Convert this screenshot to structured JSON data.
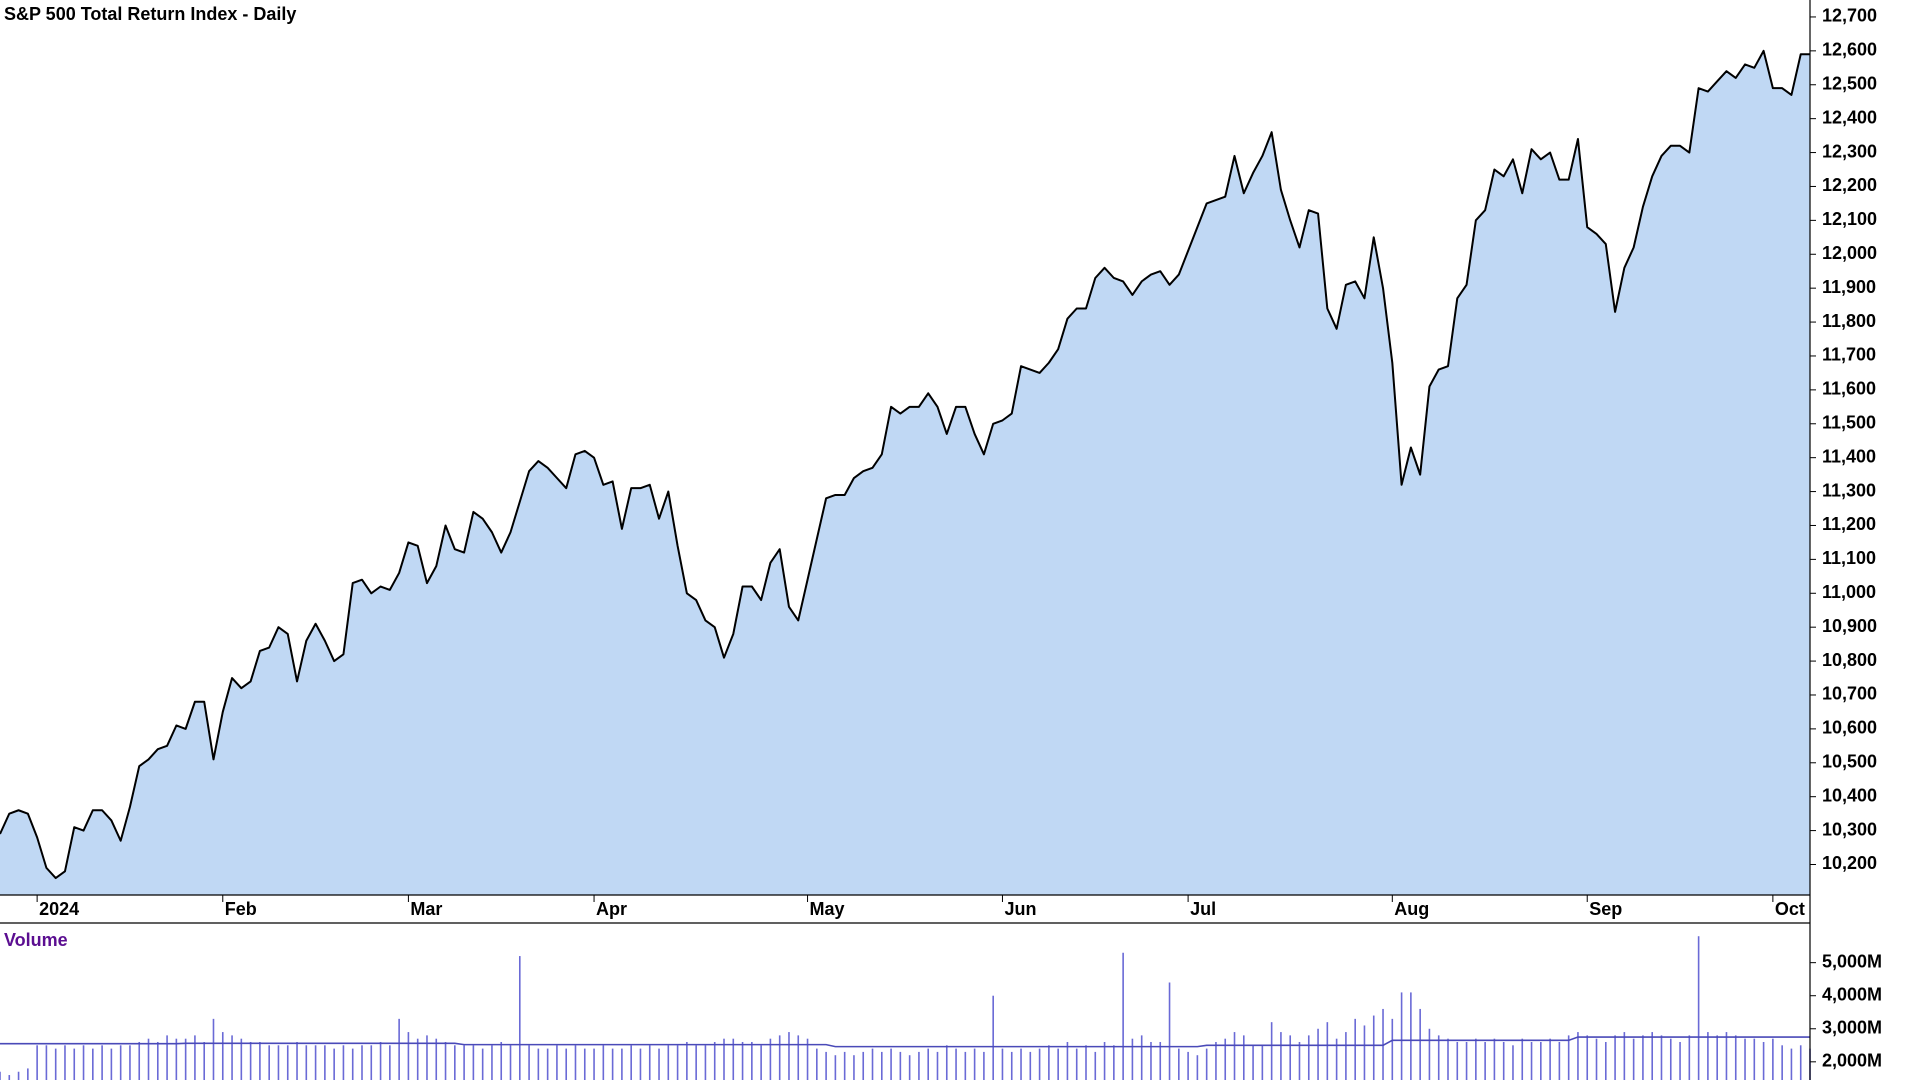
{
  "chart_data": [
    {
      "type": "area",
      "title": "S&P 500 Total Return Index - Daily",
      "color": "#000000",
      "fill": "#c0d8f4",
      "categories": [
        null,
        null,
        null,
        null,
        "2024",
        null,
        null,
        null,
        null,
        null,
        null,
        null,
        null,
        null,
        null,
        null,
        null,
        null,
        null,
        null,
        null,
        null,
        null,
        null,
        "Feb",
        null,
        null,
        null,
        null,
        null,
        null,
        null,
        null,
        null,
        null,
        null,
        null,
        null,
        null,
        null,
        null,
        null,
        null,
        null,
        "Mar",
        null,
        null,
        null,
        null,
        null,
        null,
        null,
        null,
        null,
        null,
        null,
        null,
        null,
        null,
        null,
        null,
        null,
        null,
        null,
        "Apr",
        null,
        null,
        null,
        null,
        null,
        null,
        null,
        null,
        null,
        null,
        null,
        null,
        null,
        null,
        null,
        null,
        null,
        null,
        null,
        null,
        null,
        null,
        "May",
        null,
        null,
        null,
        null,
        null,
        null,
        null,
        null,
        null,
        null,
        null,
        null,
        null,
        null,
        null,
        null,
        null,
        null,
        null,
        null,
        "Jun",
        null,
        null,
        null,
        null,
        null,
        null,
        null,
        null,
        null,
        null,
        null,
        null,
        null,
        null,
        null,
        null,
        null,
        null,
        null,
        "Jul",
        null,
        null,
        null,
        null,
        null,
        null,
        null,
        null,
        null,
        null,
        null,
        null,
        null,
        null,
        null,
        null,
        null,
        null,
        null,
        null,
        null,
        "Aug",
        null,
        null,
        null,
        null,
        null,
        null,
        null,
        null,
        null,
        null,
        null,
        null,
        null,
        null,
        null,
        null,
        null,
        null,
        null,
        null,
        "Sep",
        null,
        null,
        null,
        null,
        null,
        null,
        null,
        null,
        null,
        null,
        null,
        null,
        null,
        null,
        null,
        null,
        null,
        null,
        null,
        "Oct",
        null,
        null,
        null,
        null
      ],
      "values": [
        10290,
        10350,
        10360,
        10350,
        10280,
        10190,
        10160,
        10180,
        10310,
        10300,
        10360,
        10360,
        10330,
        10270,
        10370,
        10490,
        10510,
        10540,
        10550,
        10610,
        10600,
        10680,
        10680,
        10510,
        10650,
        10750,
        10720,
        10740,
        10830,
        10840,
        10900,
        10880,
        10740,
        10860,
        10910,
        10860,
        10800,
        10820,
        11030,
        11040,
        11000,
        11020,
        11010,
        11060,
        11150,
        11140,
        11030,
        11080,
        11200,
        11130,
        11120,
        11240,
        11220,
        11180,
        11120,
        11180,
        11270,
        11360,
        11390,
        11370,
        11340,
        11310,
        11410,
        11420,
        11400,
        11320,
        11330,
        11190,
        11310,
        11310,
        11320,
        11220,
        11300,
        11140,
        11000,
        10980,
        10920,
        10900,
        10810,
        10880,
        11020,
        11020,
        10980,
        11090,
        11130,
        10960,
        10920,
        11040,
        11160,
        11280,
        11290,
        11290,
        11340,
        11360,
        11370,
        11410,
        11550,
        11530,
        11550,
        11550,
        11590,
        11550,
        11470,
        11550,
        11550,
        11470,
        11410,
        11500,
        11510,
        11530,
        11670,
        11660,
        11650,
        11680,
        11720,
        11810,
        11840,
        11840,
        11930,
        11960,
        11930,
        11920,
        11880,
        11920,
        11940,
        11950,
        11910,
        11940,
        12010,
        12080,
        12150,
        12160,
        12170,
        12290,
        12180,
        12240,
        12290,
        12360,
        12190,
        12100,
        12020,
        12130,
        12120,
        11840,
        11780,
        11910,
        11920,
        11870,
        12050,
        11900,
        11680,
        11320,
        11430,
        11350,
        11610,
        11660,
        11670,
        11870,
        11910,
        12100,
        12130,
        12250,
        12230,
        12280,
        12180,
        12310,
        12280,
        12300,
        12220,
        12220,
        12340,
        12080,
        12060,
        12030,
        11830,
        11960,
        12020,
        12140,
        12230,
        12290,
        12320,
        12320,
        12300,
        12490,
        12480,
        12510,
        12540,
        12520,
        12560,
        12550,
        12600,
        12490,
        12490,
        12470,
        12590,
        12590
      ],
      "ylim": [
        10110,
        12750
      ],
      "yticks": [
        {
          "value": 10200,
          "label": "10,200"
        },
        {
          "value": 10300,
          "label": "10,300"
        },
        {
          "value": 10400,
          "label": "10,400"
        },
        {
          "value": 10500,
          "label": "10,500"
        },
        {
          "value": 10600,
          "label": "10,600"
        },
        {
          "value": 10700,
          "label": "10,700"
        },
        {
          "value": 10800,
          "label": "10,800"
        },
        {
          "value": 10900,
          "label": "10,900"
        },
        {
          "value": 11000,
          "label": "11,000"
        },
        {
          "value": 11100,
          "label": "11,100"
        },
        {
          "value": 11200,
          "label": "11,200"
        },
        {
          "value": 11300,
          "label": "11,300"
        },
        {
          "value": 11400,
          "label": "11,400"
        },
        {
          "value": 11500,
          "label": "11,500"
        },
        {
          "value": 11600,
          "label": "11,600"
        },
        {
          "value": 11700,
          "label": "11,700"
        },
        {
          "value": 11800,
          "label": "11,800"
        },
        {
          "value": 11900,
          "label": "11,900"
        },
        {
          "value": 12000,
          "label": "12,000"
        },
        {
          "value": 12100,
          "label": "12,100"
        },
        {
          "value": 12200,
          "label": "12,200"
        },
        {
          "value": 12300,
          "label": "12,300"
        },
        {
          "value": 12400,
          "label": "12,400"
        },
        {
          "value": 12500,
          "label": "12,500"
        },
        {
          "value": 12600,
          "label": "12,600"
        },
        {
          "value": 12700,
          "label": "12,700"
        }
      ]
    },
    {
      "type": "bar",
      "title": "Volume",
      "title_color": "#5b0e91",
      "color": "#6a6ad6",
      "average_color": "#4a4ab8",
      "values": [
        1700,
        1600,
        1700,
        1800,
        2500,
        2500,
        2400,
        2500,
        2400,
        2500,
        2400,
        2500,
        2400,
        2500,
        2500,
        2600,
        2700,
        2600,
        2800,
        2700,
        2700,
        2800,
        2600,
        3300,
        2900,
        2800,
        2700,
        2600,
        2600,
        2500,
        2500,
        2500,
        2600,
        2500,
        2500,
        2500,
        2400,
        2500,
        2400,
        2500,
        2500,
        2600,
        2500,
        3300,
        2900,
        2700,
        2800,
        2700,
        2600,
        2500,
        2500,
        2500,
        2400,
        2500,
        2600,
        2500,
        5200,
        2500,
        2400,
        2400,
        2500,
        2400,
        2500,
        2400,
        2400,
        2500,
        2400,
        2400,
        2500,
        2400,
        2500,
        2400,
        2500,
        2500,
        2600,
        2500,
        2500,
        2600,
        2700,
        2700,
        2600,
        2600,
        2500,
        2700,
        2800,
        2900,
        2800,
        2700,
        2400,
        2300,
        2200,
        2300,
        2200,
        2300,
        2400,
        2300,
        2400,
        2300,
        2200,
        2300,
        2400,
        2300,
        2500,
        2400,
        2300,
        2400,
        2300,
        4000,
        2400,
        2300,
        2400,
        2300,
        2400,
        2500,
        2400,
        2600,
        2400,
        2500,
        2300,
        2600,
        2500,
        5300,
        2700,
        2800,
        2600,
        2600,
        4400,
        2400,
        2300,
        2200,
        2400,
        2600,
        2700,
        2900,
        2800,
        2500,
        2500,
        3200,
        2900,
        2800,
        2600,
        2800,
        3000,
        3200,
        2700,
        2900,
        3300,
        3100,
        3400,
        3600,
        3300,
        4100,
        4100,
        3600,
        3000,
        2800,
        2700,
        2600,
        2600,
        2700,
        2600,
        2700,
        2600,
        2500,
        2700,
        2600,
        2600,
        2700,
        2600,
        2800,
        2900,
        2800,
        2700,
        2600,
        2800,
        2900,
        2700,
        2800,
        2900,
        2800,
        2700,
        2600,
        2800,
        5800,
        2900,
        2800,
        2900,
        2800,
        2700,
        2700,
        2600,
        2700,
        2500,
        2400,
        2500,
        2400
      ],
      "moving_average": [
        2550,
        2550,
        2550,
        2550,
        2550,
        2550,
        2550,
        2550,
        2550,
        2550,
        2550,
        2550,
        2550,
        2550,
        2550,
        2550,
        2550,
        2550,
        2550,
        2550,
        2560,
        2560,
        2560,
        2560,
        2560,
        2560,
        2560,
        2560,
        2560,
        2560,
        2560,
        2560,
        2560,
        2560,
        2560,
        2560,
        2560,
        2560,
        2560,
        2560,
        2560,
        2560,
        2560,
        2560,
        2560,
        2560,
        2560,
        2560,
        2560,
        2560,
        2520,
        2520,
        2520,
        2520,
        2520,
        2520,
        2520,
        2520,
        2520,
        2520,
        2520,
        2520,
        2520,
        2520,
        2520,
        2520,
        2520,
        2520,
        2520,
        2520,
        2520,
        2520,
        2520,
        2520,
        2520,
        2520,
        2520,
        2520,
        2520,
        2520,
        2520,
        2520,
        2520,
        2520,
        2520,
        2520,
        2520,
        2520,
        2520,
        2520,
        2460,
        2460,
        2460,
        2460,
        2460,
        2460,
        2460,
        2460,
        2460,
        2460,
        2460,
        2460,
        2460,
        2460,
        2460,
        2460,
        2460,
        2460,
        2460,
        2460,
        2460,
        2460,
        2460,
        2460,
        2460,
        2460,
        2460,
        2460,
        2460,
        2460,
        2460,
        2460,
        2460,
        2460,
        2460,
        2460,
        2460,
        2460,
        2460,
        2460,
        2500,
        2500,
        2500,
        2500,
        2500,
        2500,
        2500,
        2500,
        2500,
        2500,
        2500,
        2500,
        2500,
        2500,
        2500,
        2500,
        2500,
        2500,
        2500,
        2500,
        2650,
        2650,
        2650,
        2650,
        2650,
        2650,
        2650,
        2650,
        2650,
        2650,
        2650,
        2650,
        2650,
        2650,
        2650,
        2650,
        2650,
        2650,
        2650,
        2650,
        2750,
        2750,
        2750,
        2750,
        2750,
        2750,
        2750,
        2750,
        2750,
        2750,
        2750,
        2750,
        2750,
        2750,
        2750,
        2750,
        2750,
        2750,
        2750,
        2750,
        2750,
        2750,
        2750,
        2750,
        2750,
        2750
      ],
      "ylim": [
        1450,
        6200
      ],
      "yticks": [
        {
          "value": 2000,
          "label": "2,000M"
        },
        {
          "value": 3000,
          "label": "3,000M"
        },
        {
          "value": 4000,
          "label": "4,000M"
        },
        {
          "value": 5000,
          "label": "5,000M"
        }
      ]
    }
  ]
}
